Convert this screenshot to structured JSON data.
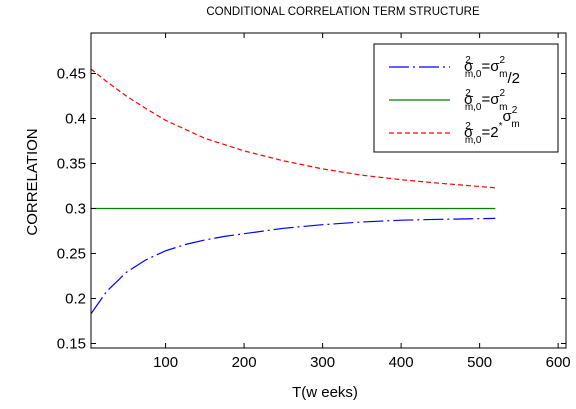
{
  "chart_data": {
    "type": "line",
    "title": "CONDITIONAL CORRELATION TERM STRUCTURE",
    "xlabel": "T(w eeks)",
    "ylabel": "CORRELATION",
    "xlim": [
      5,
      610
    ],
    "ylim": [
      0.145,
      0.495
    ],
    "xticks": [
      100,
      200,
      300,
      400,
      500,
      600
    ],
    "xtick_labels": [
      "100",
      "200",
      "300",
      "400",
      "500",
      "600"
    ],
    "yticks": [
      0.15,
      0.2,
      0.25,
      0.3,
      0.35,
      0.4,
      0.45
    ],
    "ytick_labels": [
      "0.15",
      "0.2",
      "0.25",
      "0.3",
      "0.35",
      "0.4",
      "0.45"
    ],
    "legend_position": "top-right",
    "series": [
      {
        "color": "#0000ff",
        "dash": "dashdot",
        "legend": {
          "base": "σ",
          "sup1": "2",
          "sub1": "m,0",
          "mid": "=σ",
          "sup2": "2",
          "sub2": "m",
          "tail": "/2"
        },
        "x": [
          5,
          25,
          50,
          75,
          100,
          125,
          150,
          175,
          200,
          250,
          300,
          350,
          400,
          450,
          520
        ],
        "y": [
          0.183,
          0.208,
          0.229,
          0.243,
          0.253,
          0.26,
          0.265,
          0.269,
          0.272,
          0.278,
          0.282,
          0.285,
          0.287,
          0.288,
          0.289
        ]
      },
      {
        "color": "#008000",
        "dash": "solid",
        "legend": {
          "base": "σ",
          "sup1": "2",
          "sub1": "m,0",
          "mid": "=σ",
          "sup2": "2",
          "sub2": "m",
          "tail": ""
        },
        "x": [
          5,
          520
        ],
        "y": [
          0.3,
          0.3
        ]
      },
      {
        "color": "#ff0000",
        "dash": "dashed",
        "legend": {
          "base": "σ",
          "sup1": "2",
          "sub1": "m,0",
          "mid": "=2",
          "sup2": "*",
          "sub2": "",
          "tail": "σ",
          "tailsup": "2",
          "tailsub": "m"
        },
        "x": [
          5,
          25,
          50,
          75,
          100,
          125,
          150,
          175,
          200,
          250,
          300,
          350,
          400,
          450,
          520
        ],
        "y": [
          0.455,
          0.441,
          0.425,
          0.411,
          0.398,
          0.388,
          0.378,
          0.371,
          0.364,
          0.353,
          0.344,
          0.337,
          0.332,
          0.328,
          0.323
        ]
      }
    ]
  }
}
